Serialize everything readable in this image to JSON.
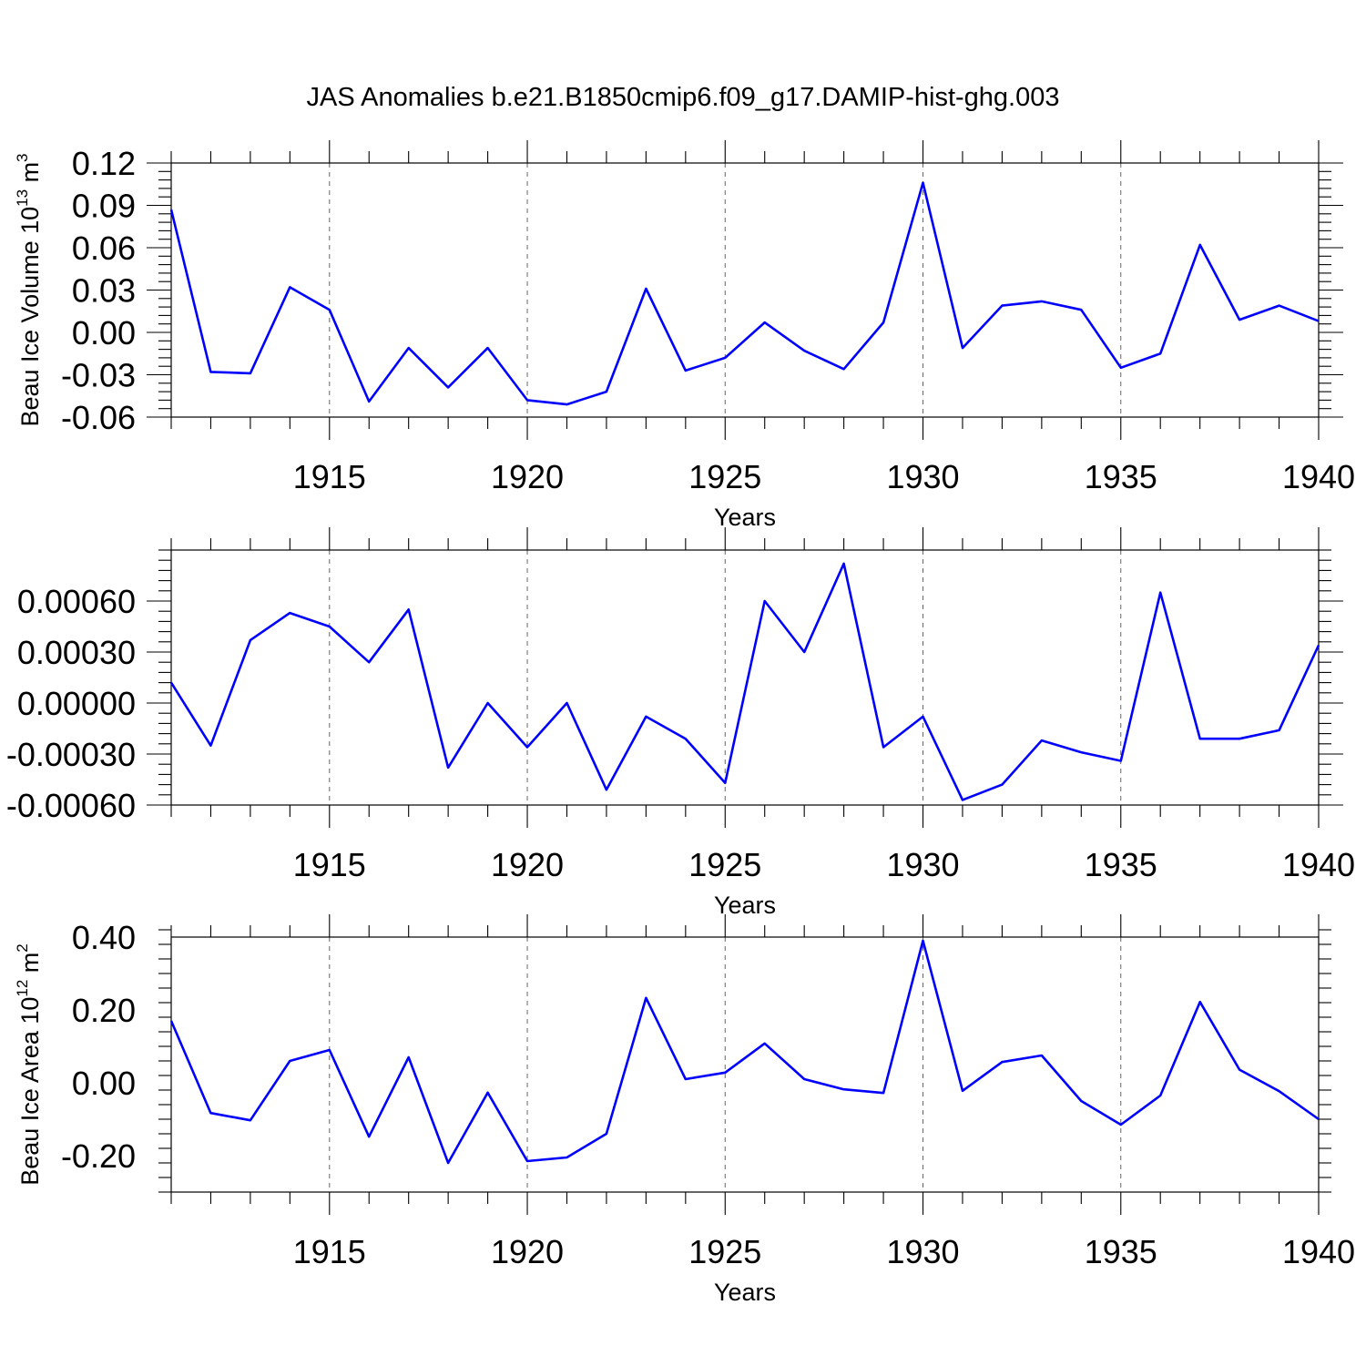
{
  "title": "JAS Anomalies b.e21.B1850cmip6.f09_g17.DAMIP-hist-ghg.003",
  "colors": {
    "line": "#0000ff",
    "axes": "#000000",
    "grid": "#666666"
  },
  "chart_data": [
    {
      "type": "line",
      "title": "JAS Anomalies b.e21.B1850cmip6.f09_g17.DAMIP-hist-ghg.003",
      "xlabel": "Years",
      "ylabel": "Beau Ice Volume 10^13 m^3",
      "ylabel_parts": {
        "main": "Beau Ice Volume 10",
        "exp1": "13",
        "unit": " m",
        "exp2": "3"
      },
      "xlim": [
        1911,
        1940
      ],
      "ylim": [
        -0.06,
        0.12
      ],
      "x_ticks": [
        1915,
        1920,
        1925,
        1930,
        1935,
        1940
      ],
      "x_tick_labels": [
        "1915",
        "1920",
        "1925",
        "1930",
        "1935",
        "1940"
      ],
      "y_ticks": [
        -0.06,
        -0.03,
        0.0,
        0.03,
        0.06,
        0.09,
        0.12
      ],
      "y_tick_labels": [
        "-0.06",
        "-0.03",
        "0.00",
        "0.03",
        "0.06",
        "0.09",
        "0.12"
      ],
      "grid": "vertical dashed at labeled years",
      "x": [
        1911,
        1912,
        1913,
        1914,
        1915,
        1916,
        1917,
        1918,
        1919,
        1920,
        1921,
        1922,
        1923,
        1924,
        1925,
        1926,
        1927,
        1928,
        1929,
        1930,
        1931,
        1932,
        1933,
        1934,
        1935,
        1936,
        1937,
        1938,
        1939,
        1940
      ],
      "y": [
        0.087,
        -0.028,
        -0.029,
        0.032,
        0.016,
        -0.049,
        -0.011,
        -0.039,
        -0.011,
        -0.048,
        -0.051,
        -0.042,
        0.031,
        -0.027,
        -0.018,
        0.007,
        -0.013,
        -0.026,
        0.007,
        0.106,
        -0.011,
        0.019,
        0.022,
        0.016,
        -0.025,
        -0.015,
        0.062,
        0.009,
        0.019,
        0.008
      ]
    },
    {
      "type": "line",
      "xlabel": "Years",
      "ylabel": "",
      "xlim": [
        1911,
        1940
      ],
      "ylim": [
        -0.0006,
        0.0009
      ],
      "x_ticks": [
        1915,
        1920,
        1925,
        1930,
        1935,
        1940
      ],
      "x_tick_labels": [
        "1915",
        "1920",
        "1925",
        "1930",
        "1935",
        "1940"
      ],
      "y_ticks": [
        -0.0006,
        -0.0003,
        0.0,
        0.0003,
        0.0006
      ],
      "y_tick_labels": [
        "-0.00060",
        "-0.00030",
        "0.00000",
        "0.00030",
        "0.00060"
      ],
      "grid": "vertical dashed at labeled years",
      "x": [
        1911,
        1912,
        1913,
        1914,
        1915,
        1916,
        1917,
        1918,
        1919,
        1920,
        1921,
        1922,
        1923,
        1924,
        1925,
        1926,
        1927,
        1928,
        1929,
        1930,
        1931,
        1932,
        1933,
        1934,
        1935,
        1936,
        1937,
        1938,
        1939,
        1940
      ],
      "y": [
        0.00012,
        -0.00025,
        0.00037,
        0.00053,
        0.00045,
        0.00024,
        0.00055,
        -0.00038,
        0.0,
        -0.00026,
        0.0,
        -0.00051,
        -8e-05,
        -0.00021,
        -0.00047,
        0.0006,
        0.0003,
        0.00082,
        -0.00026,
        -8e-05,
        -0.00057,
        -0.00048,
        -0.00022,
        -0.00029,
        -0.00034,
        0.00065,
        -0.00021,
        -0.00021,
        -0.00016,
        0.00034
      ]
    },
    {
      "type": "line",
      "xlabel": "Years",
      "ylabel": "Beau Ice Area 10^12 m^2",
      "ylabel_parts": {
        "main": "Beau Ice Area 10",
        "exp1": "12",
        "unit": " m",
        "exp2": "2"
      },
      "xlim": [
        1911,
        1940
      ],
      "ylim": [
        -0.3,
        0.4
      ],
      "x_ticks": [
        1915,
        1920,
        1925,
        1930,
        1935,
        1940
      ],
      "x_tick_labels": [
        "1915",
        "1920",
        "1925",
        "1930",
        "1935",
        "1940"
      ],
      "y_ticks": [
        -0.2,
        0.0,
        0.2,
        0.4
      ],
      "y_tick_labels": [
        "-0.20",
        "0.00",
        "0.20",
        "0.40"
      ],
      "grid": "vertical dashed at labeled years",
      "x": [
        1911,
        1912,
        1913,
        1914,
        1915,
        1916,
        1917,
        1918,
        1919,
        1920,
        1921,
        1922,
        1923,
        1924,
        1925,
        1926,
        1927,
        1928,
        1929,
        1930,
        1931,
        1932,
        1933,
        1934,
        1935,
        1936,
        1937,
        1938,
        1939,
        1940
      ],
      "y": [
        0.17,
        -0.083,
        -0.103,
        0.06,
        0.09,
        -0.148,
        0.07,
        -0.22,
        -0.027,
        -0.215,
        -0.205,
        -0.14,
        0.233,
        0.01,
        0.028,
        0.108,
        0.01,
        -0.018,
        -0.028,
        0.39,
        -0.022,
        0.057,
        0.075,
        -0.05,
        -0.115,
        -0.035,
        0.222,
        0.036,
        -0.023,
        -0.1
      ]
    }
  ]
}
